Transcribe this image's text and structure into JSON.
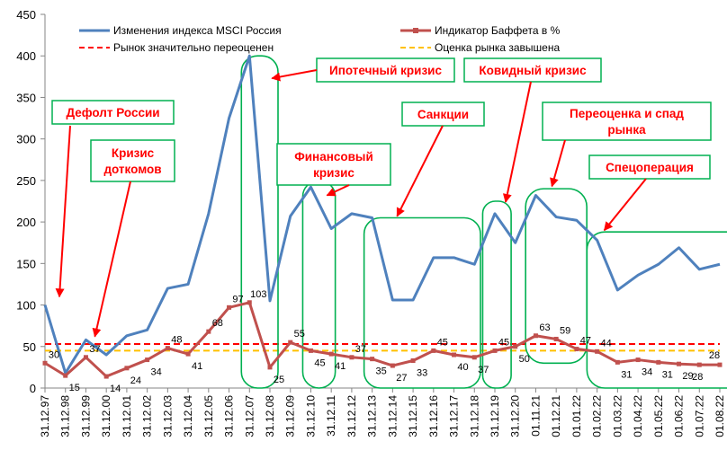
{
  "chart_data": {
    "type": "line",
    "ylim": [
      0,
      450
    ],
    "yticks": [
      0,
      50,
      100,
      150,
      200,
      250,
      300,
      350,
      400,
      450
    ],
    "grid": false,
    "legend_placement": "top",
    "categories": [
      "31.12.97",
      "31.12.98",
      "31.12.99",
      "31.12.00",
      "31.12.01",
      "31.12.02",
      "31.12.03",
      "31.12.04",
      "31.12.05",
      "31.12.06",
      "31.12.07",
      "31.12.08",
      "31.12.09",
      "31.12.10",
      "31.12.11",
      "31.12.12",
      "31.12.13",
      "31.12.14",
      "31.12.15",
      "31.12.16",
      "31.12.17",
      "31.12.18",
      "31.12.19",
      "31.12.20",
      "01.11.21",
      "01.12.21",
      "01.01.22",
      "01.02.22",
      "01.03.22",
      "01.04.22",
      "01.05.22",
      "01.06.22",
      "01.07.22",
      "01.08.22"
    ],
    "series": [
      {
        "name": "Изменения индекса MSCI Россия",
        "color": "#4f81bd",
        "values": [
          100,
          18,
          58,
          40,
          63,
          70,
          120,
          125,
          210,
          325,
          400,
          105,
          207,
          242,
          192,
          210,
          205,
          106,
          106,
          157,
          157,
          149,
          210,
          175,
          232,
          206,
          202,
          178,
          118,
          136,
          149,
          169,
          143,
          149
        ]
      },
      {
        "name": "Индикатор Баффета в %",
        "color": "#c0504d",
        "values": [
          30,
          15,
          37,
          14,
          24,
          34,
          48,
          41,
          68,
          97,
          103,
          25,
          55,
          45,
          41,
          37,
          35,
          27,
          33,
          45,
          40,
          37,
          45,
          50,
          63,
          59,
          47,
          44,
          31,
          34,
          31,
          29,
          28,
          28
        ],
        "labels": [
          "30",
          "15",
          "37",
          "14",
          "24",
          "34",
          "48",
          "41",
          "68",
          "97",
          "103",
          "25",
          "55",
          "45",
          "41",
          "37",
          "35",
          "27",
          "33",
          "45",
          "40",
          "37",
          "45",
          "50",
          "63",
          "59",
          "47",
          "44",
          "31",
          "34",
          "31",
          "29",
          "28",
          "28"
        ]
      }
    ],
    "reference_lines": [
      {
        "name": "Рынок значительно переоценен",
        "value": 53,
        "color": "#ff0000"
      },
      {
        "name": "Оценка рынка завышена",
        "value": 45,
        "color": "#ffc000"
      }
    ],
    "annotations": [
      {
        "text": "Дефолт России",
        "lines": [
          "Дефолт России"
        ]
      },
      {
        "text": "Кризис доткомов",
        "lines": [
          "Кризис",
          "доткомов"
        ]
      },
      {
        "text": "Ипотечный кризис",
        "lines": [
          "Ипотечный кризис"
        ]
      },
      {
        "text": "Финансовый кризис",
        "lines": [
          "Финансовый",
          "кризис"
        ]
      },
      {
        "text": "Санкции",
        "lines": [
          "Санкции"
        ]
      },
      {
        "text": "Ковидный кризис",
        "lines": [
          "Ковидный кризис"
        ]
      },
      {
        "text": "Переоценка и спад рынка",
        "lines": [
          "Переоценка и спад",
          "рынка"
        ]
      },
      {
        "text": "Спецоперация",
        "lines": [
          "Спецоперация"
        ]
      }
    ],
    "colors": {
      "annotation": "#ff0000",
      "highlight": "#00b050"
    }
  }
}
